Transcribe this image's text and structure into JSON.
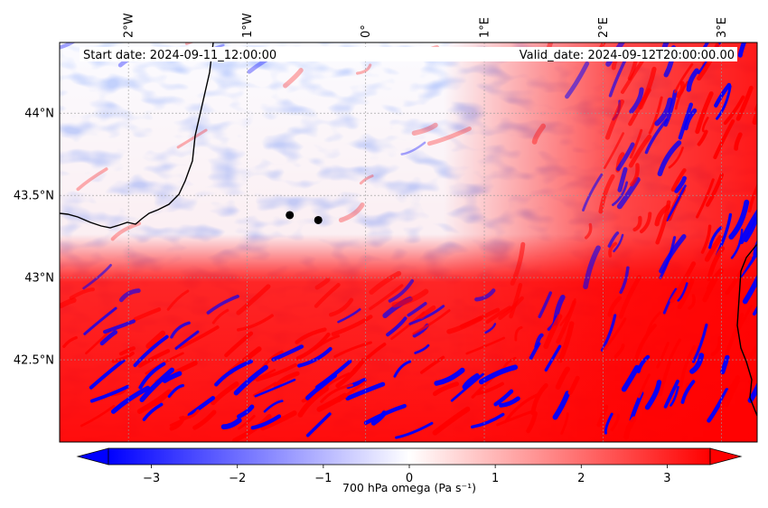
{
  "map": {
    "info": {
      "start_date": "Start date: 2024-09-11_12:00:00",
      "valid_date": "Valid_date: 2024-09-12T20:00:00.00"
    },
    "lon_ticks": [
      "2°W",
      "1°W",
      "0°",
      "1°E",
      "2°E",
      "3°E"
    ],
    "lon_values": [
      -2,
      -1,
      0,
      1,
      2,
      3
    ],
    "lat_ticks": [
      "44°N",
      "43.5°N",
      "43°N",
      "42.5°N"
    ],
    "lat_values": [
      44,
      43.5,
      43,
      42.5
    ],
    "extent": {
      "lon_min": -2.58,
      "lon_max": 3.3,
      "lat_min": 42.0,
      "lat_max": 44.43
    },
    "points": [
      {
        "name": "point-1",
        "lon": -0.64,
        "lat": 43.38
      },
      {
        "name": "point-2",
        "lon": -0.4,
        "lat": 43.35
      }
    ],
    "colors": {
      "negative": "#0000ff",
      "zero": "#ffffff",
      "positive": "#ff0000",
      "coast": "#000000"
    }
  },
  "colorbar": {
    "label": "700 hPa omega (Pa s⁻¹)",
    "ticks": [
      "−3",
      "−2",
      "−1",
      "0",
      "1",
      "2",
      "3"
    ],
    "tick_values": [
      -3,
      -2,
      -1,
      0,
      1,
      2,
      3
    ],
    "vmin": -3.5,
    "vmax": 3.5,
    "extend": "both"
  }
}
